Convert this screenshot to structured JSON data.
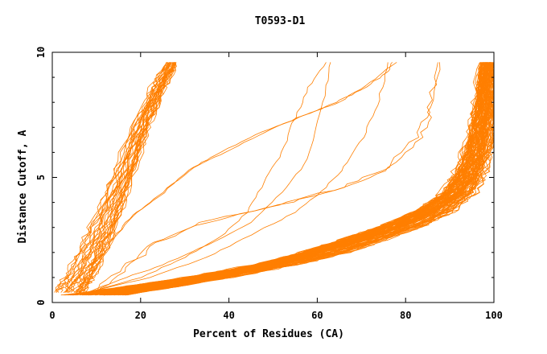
{
  "chart_data": {
    "type": "line",
    "title": "T0593-D1",
    "xlabel": "Percent of Residues (CA)",
    "ylabel": "Distance Cutoff, A",
    "xlim": [
      0,
      100
    ],
    "ylim": [
      0,
      10
    ],
    "x_ticks": [
      0,
      20,
      40,
      60,
      80,
      100
    ],
    "y_ticks": [
      0,
      5,
      10
    ],
    "y_minor_ticks": [
      1,
      2,
      3,
      4,
      6,
      7,
      8,
      9
    ],
    "grid": false,
    "legend": "none",
    "line_color": "#ff7f00",
    "series_groups": [
      {
        "count": 30,
        "points": [
          [
            4,
            0.4
          ],
          [
            6,
            1.0
          ],
          [
            9,
            2.0
          ],
          [
            12,
            3.2
          ],
          [
            16,
            5.0
          ],
          [
            20,
            7.0
          ],
          [
            24,
            8.6
          ],
          [
            27,
            9.6
          ]
        ],
        "x_spread": 8
      },
      {
        "count": 1,
        "points": [
          [
            6,
            0.3
          ],
          [
            10,
            1.4
          ],
          [
            14,
            2.6
          ],
          [
            18,
            3.5
          ],
          [
            24,
            4.2
          ],
          [
            31,
            5.3
          ],
          [
            37,
            5.9
          ],
          [
            46,
            6.7
          ],
          [
            56,
            7.4
          ],
          [
            63,
            7.9
          ],
          [
            70,
            8.5
          ],
          [
            76,
            9.2
          ],
          [
            77,
            9.6
          ]
        ],
        "x_spread": 0
      },
      {
        "count": 1,
        "points": [
          [
            6,
            0.3
          ],
          [
            10,
            1.4
          ],
          [
            14,
            2.6
          ],
          [
            19,
            3.6
          ],
          [
            25,
            4.4
          ],
          [
            32,
            5.4
          ],
          [
            39,
            6.0
          ],
          [
            48,
            6.8
          ],
          [
            57,
            7.5
          ],
          [
            65,
            8.0
          ],
          [
            72,
            8.8
          ],
          [
            78,
            9.6
          ]
        ],
        "x_spread": 0
      },
      {
        "count": 1,
        "points": [
          [
            8,
            0.4
          ],
          [
            15,
            0.9
          ],
          [
            25,
            1.5
          ],
          [
            35,
            2.3
          ],
          [
            45,
            3.2
          ],
          [
            52,
            4.4
          ],
          [
            57,
            5.5
          ],
          [
            60,
            7.0
          ],
          [
            62,
            8.5
          ],
          [
            63,
            9.6
          ]
        ],
        "x_spread": 0
      },
      {
        "count": 1,
        "points": [
          [
            8,
            0.4
          ],
          [
            20,
            1.0
          ],
          [
            30,
            1.8
          ],
          [
            38,
            2.6
          ],
          [
            44,
            3.6
          ],
          [
            48,
            4.8
          ],
          [
            52,
            6.0
          ],
          [
            55,
            7.4
          ],
          [
            58,
            8.6
          ],
          [
            62,
            9.6
          ]
        ],
        "x_spread": 0
      },
      {
        "count": 1,
        "points": [
          [
            8,
            0.4
          ],
          [
            22,
            1.0
          ],
          [
            35,
            1.8
          ],
          [
            45,
            2.7
          ],
          [
            55,
            3.6
          ],
          [
            62,
            4.6
          ],
          [
            67,
            5.6
          ],
          [
            71,
            6.8
          ],
          [
            74,
            8.1
          ],
          [
            76,
            9.6
          ]
        ],
        "x_spread": 0
      },
      {
        "count": 2,
        "points": [
          [
            8,
            0.4
          ],
          [
            15,
            1.4
          ],
          [
            22,
            2.4
          ],
          [
            33,
            3.2
          ],
          [
            50,
            3.9
          ],
          [
            65,
            4.6
          ],
          [
            75,
            5.4
          ],
          [
            82,
            6.6
          ],
          [
            85,
            7.8
          ],
          [
            87,
            9.6
          ]
        ],
        "x_spread": 5
      },
      {
        "count": 60,
        "points": [
          [
            8,
            0.3
          ],
          [
            20,
            0.6
          ],
          [
            35,
            1.0
          ],
          [
            50,
            1.5
          ],
          [
            62,
            2.0
          ],
          [
            72,
            2.6
          ],
          [
            80,
            3.1
          ],
          [
            87,
            3.7
          ],
          [
            92,
            4.4
          ],
          [
            95,
            5.4
          ],
          [
            97,
            6.6
          ],
          [
            98,
            8.0
          ],
          [
            98.5,
            9.6
          ]
        ],
        "x_spread": 12
      },
      {
        "count": 40,
        "points": [
          [
            14,
            0.3
          ],
          [
            28,
            0.7
          ],
          [
            42,
            1.2
          ],
          [
            55,
            1.8
          ],
          [
            66,
            2.4
          ],
          [
            76,
            3.0
          ],
          [
            84,
            3.6
          ],
          [
            90,
            4.2
          ],
          [
            94,
            5.0
          ],
          [
            96,
            6.0
          ],
          [
            97.5,
            7.5
          ],
          [
            98.5,
            9.6
          ]
        ],
        "x_spread": 6
      }
    ]
  }
}
